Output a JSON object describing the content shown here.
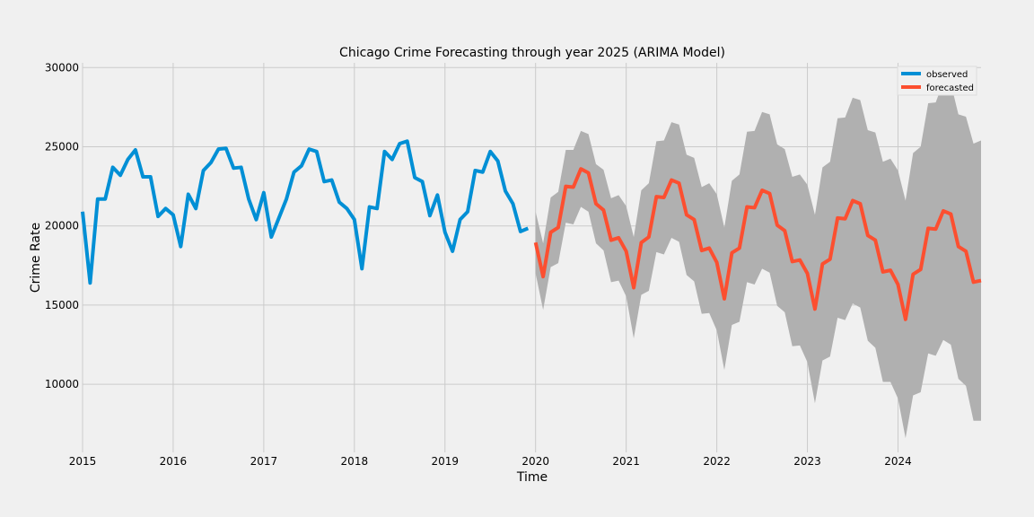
{
  "chart_data": {
    "type": "line",
    "title": "Chicago Crime Forecasting through year 2025 (ARIMA Model)",
    "xlabel": "Time",
    "ylabel": "Crime Rate",
    "x_range": [
      "2015-01",
      "2024-12"
    ],
    "ylim": [
      5700,
      30300
    ],
    "x_ticks": [
      "2015",
      "2016",
      "2017",
      "2018",
      "2019",
      "2020",
      "2021",
      "2022",
      "2023",
      "2024"
    ],
    "y_ticks": [
      "10000",
      "15000",
      "20000",
      "25000",
      "30000"
    ],
    "grid": true,
    "legend_position": "top-right",
    "colors": {
      "observed": "#008fd5",
      "forecasted": "#fc4f30",
      "confidence_band": "#b0b0b0",
      "background": "#f0f0f0",
      "grid": "#cbcbcb"
    },
    "series": [
      {
        "name": "observed",
        "x": [
          "2015-01",
          "2015-02",
          "2015-03",
          "2015-04",
          "2015-05",
          "2015-06",
          "2015-07",
          "2015-08",
          "2015-09",
          "2015-10",
          "2015-11",
          "2015-12",
          "2016-01",
          "2016-02",
          "2016-03",
          "2016-04",
          "2016-05",
          "2016-06",
          "2016-07",
          "2016-08",
          "2016-09",
          "2016-10",
          "2016-11",
          "2016-12",
          "2017-01",
          "2017-02",
          "2017-03",
          "2017-04",
          "2017-05",
          "2017-06",
          "2017-07",
          "2017-08",
          "2017-09",
          "2017-10",
          "2017-11",
          "2017-12",
          "2018-01",
          "2018-02",
          "2018-03",
          "2018-04",
          "2018-05",
          "2018-06",
          "2018-07",
          "2018-08",
          "2018-09",
          "2018-10",
          "2018-11",
          "2018-12",
          "2019-01",
          "2019-02",
          "2019-03",
          "2019-04",
          "2019-05",
          "2019-06",
          "2019-07",
          "2019-08",
          "2019-09",
          "2019-10",
          "2019-11",
          "2019-12"
        ],
        "values": [
          20900,
          16400,
          21700,
          21700,
          23700,
          23200,
          24200,
          24800,
          23100,
          23100,
          20600,
          21100,
          20700,
          18700,
          22000,
          21100,
          23500,
          24000,
          24850,
          24900,
          23650,
          23700,
          21700,
          20400,
          22100,
          19300,
          20500,
          21700,
          23400,
          23800,
          24850,
          24700,
          22800,
          22900,
          21500,
          21100,
          20400,
          17300,
          21200,
          21100,
          24700,
          24200,
          25200,
          25350,
          23050,
          22800,
          20650,
          21950,
          19600,
          18400,
          20400,
          20900,
          23500,
          23400,
          24700,
          24100,
          22200,
          21400,
          19650,
          19850
        ]
      },
      {
        "name": "forecasted",
        "x": [
          "2020-01",
          "2020-02",
          "2020-03",
          "2020-04",
          "2020-05",
          "2020-06",
          "2020-07",
          "2020-08",
          "2020-09",
          "2020-10",
          "2020-11",
          "2020-12",
          "2021-01",
          "2021-02",
          "2021-03",
          "2021-04",
          "2021-05",
          "2021-06",
          "2021-07",
          "2021-08",
          "2021-09",
          "2021-10",
          "2021-11",
          "2021-12",
          "2022-01",
          "2022-02",
          "2022-03",
          "2022-04",
          "2022-05",
          "2022-06",
          "2022-07",
          "2022-08",
          "2022-09",
          "2022-10",
          "2022-11",
          "2022-12",
          "2023-01",
          "2023-02",
          "2023-03",
          "2023-04",
          "2023-05",
          "2023-06",
          "2023-07",
          "2023-08",
          "2023-09",
          "2023-10",
          "2023-11",
          "2023-12",
          "2024-01",
          "2024-02",
          "2024-03",
          "2024-04",
          "2024-05",
          "2024-06",
          "2024-07",
          "2024-08",
          "2024-09",
          "2024-10",
          "2024-11",
          "2024-12"
        ],
        "values": [
          18950,
          16800,
          19600,
          19900,
          22500,
          22450,
          23600,
          23350,
          21400,
          21000,
          19100,
          19250,
          18400,
          16100,
          18950,
          19300,
          21850,
          21800,
          22900,
          22700,
          20700,
          20400,
          18450,
          18600,
          17700,
          15400,
          18300,
          18600,
          21200,
          21150,
          22250,
          22050,
          20050,
          19700,
          17750,
          17850,
          17000,
          14750,
          17600,
          17900,
          20500,
          20450,
          21600,
          21400,
          19400,
          19100,
          17100,
          17200,
          16300,
          14100,
          16950,
          17250,
          19850,
          19800,
          20950,
          20750,
          18700,
          18400,
          16450,
          16550
        ],
        "lower": [
          17000,
          14700,
          17400,
          17650,
          20200,
          20100,
          21200,
          20900,
          18900,
          18450,
          16450,
          16550,
          15550,
          12900,
          15650,
          15900,
          18350,
          18200,
          19250,
          19000,
          16900,
          16500,
          14450,
          14500,
          13400,
          10900,
          13750,
          13950,
          16450,
          16300,
          17300,
          17050,
          14950,
          14550,
          12400,
          12450,
          11400,
          8800,
          11500,
          11750,
          14200,
          14050,
          15100,
          14850,
          12750,
          12300,
          10150,
          10150,
          9100,
          6600,
          9300,
          9500,
          11950,
          11800,
          12800,
          12500,
          10350,
          9900,
          7700,
          7700
        ],
        "upper": [
          20900,
          18900,
          21800,
          22150,
          24800,
          24800,
          26000,
          25800,
          23900,
          23550,
          21750,
          21950,
          21250,
          19300,
          22250,
          22700,
          25350,
          25400,
          26550,
          26400,
          24500,
          24300,
          22450,
          22700,
          22000,
          19900,
          22850,
          23250,
          25950,
          26000,
          27200,
          27050,
          25150,
          24850,
          23100,
          23250,
          22600,
          20700,
          23700,
          24050,
          26800,
          26850,
          28100,
          27950,
          26050,
          25900,
          24050,
          24250,
          23500,
          21600,
          24600,
          25000,
          27750,
          27800,
          29100,
          29000,
          27050,
          26900,
          25200,
          25400
        ]
      }
    ]
  }
}
